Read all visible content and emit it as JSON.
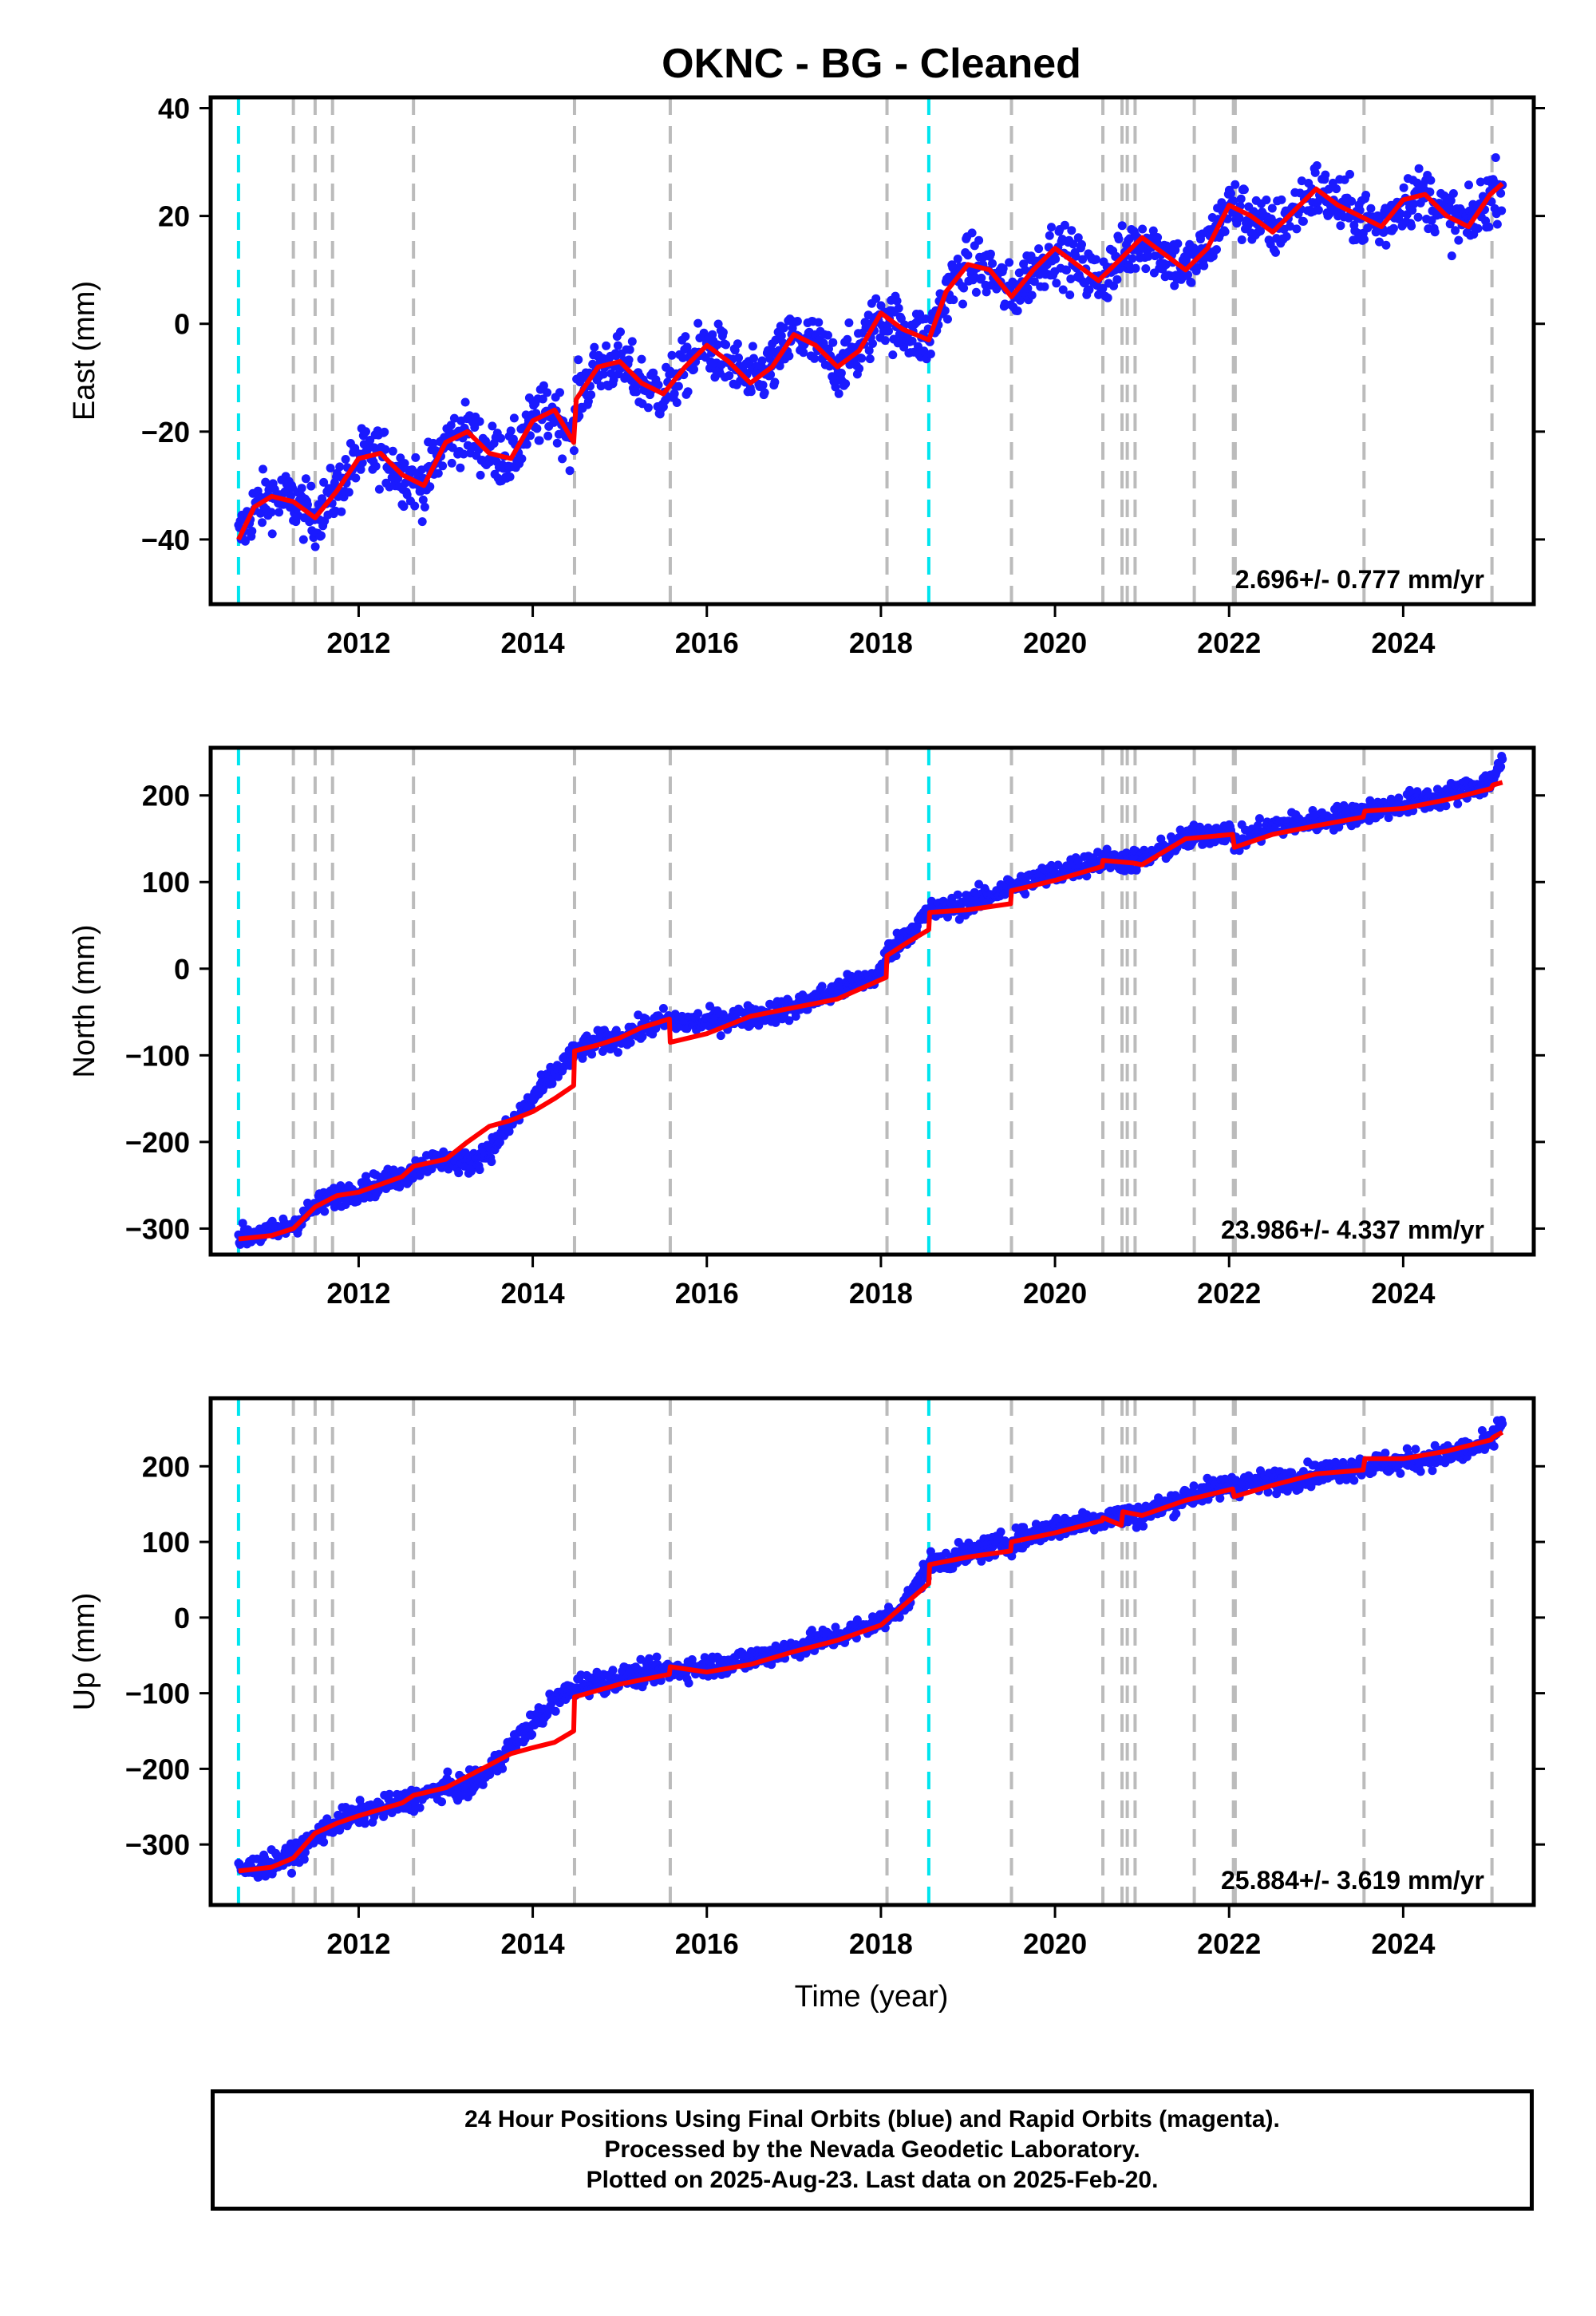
{
  "title": "OKNC  - BG - Cleaned",
  "xlabel": "Time (year)",
  "x_ticks": [
    2012,
    2014,
    2016,
    2018,
    2020,
    2022,
    2024
  ],
  "xlim": [
    2010.3,
    2025.5
  ],
  "cyan_lines": [
    2010.62,
    2018.55
  ],
  "gray_lines": [
    2011.25,
    2011.5,
    2011.7,
    2012.63,
    2014.48,
    2015.58,
    2018.07,
    2019.5,
    2020.55,
    2020.77,
    2020.83,
    2020.92,
    2021.6,
    2022.05,
    2022.07,
    2023.55,
    2025.02
  ],
  "colors": {
    "points": "#1a1aff",
    "model": "#ff0000",
    "cyan": "#00e5ee",
    "gray": "#bbbbbb"
  },
  "chart_data": [
    {
      "type": "scatter",
      "component": "East",
      "ylabel": "East (mm)",
      "ylim": [
        -52,
        42
      ],
      "y_ticks": [
        40,
        20,
        0,
        -20,
        -40
      ],
      "rate_label": "2.696+/- 0.777 mm/yr",
      "series": [
        {
          "name": "24 Hour Positions (Final Orbits)",
          "x": [
            2010.62,
            2010.8,
            2011.0,
            2011.25,
            2011.5,
            2011.75,
            2012.0,
            2012.25,
            2012.5,
            2012.75,
            2013.0,
            2013.25,
            2013.5,
            2013.75,
            2014.0,
            2014.25,
            2014.47,
            2014.5,
            2014.75,
            2015.0,
            2015.25,
            2015.5,
            2015.75,
            2016.0,
            2016.25,
            2016.5,
            2016.75,
            2017.0,
            2017.25,
            2017.5,
            2017.75,
            2018.0,
            2018.25,
            2018.55,
            2018.75,
            2019.0,
            2019.25,
            2019.5,
            2019.75,
            2020.0,
            2020.25,
            2020.5,
            2020.75,
            2021.0,
            2021.25,
            2021.5,
            2021.75,
            2022.0,
            2022.25,
            2022.5,
            2022.75,
            2023.0,
            2023.25,
            2023.5,
            2023.75,
            2024.0,
            2024.25,
            2024.5,
            2024.75,
            2025.0,
            2025.14
          ],
          "y": [
            -40,
            -34,
            -32,
            -33,
            -36,
            -31,
            -25,
            -24,
            -28,
            -30,
            -22,
            -20,
            -24,
            -25,
            -18,
            -16,
            -22,
            -14,
            -8,
            -7,
            -11,
            -13,
            -8,
            -4,
            -7,
            -11,
            -8,
            -2,
            -4,
            -8,
            -5,
            2,
            -1,
            -3,
            6,
            11,
            10,
            5,
            10,
            14,
            11,
            8,
            12,
            16,
            13,
            10,
            14,
            22,
            20,
            17,
            21,
            25,
            22,
            20,
            18,
            23,
            24,
            20,
            18,
            24,
            26
          ]
        },
        {
          "name": "Model",
          "x": [
            2010.62,
            2010.8,
            2011.0,
            2011.25,
            2011.5,
            2011.75,
            2012.0,
            2012.25,
            2012.5,
            2012.75,
            2013.0,
            2013.25,
            2013.5,
            2013.75,
            2014.0,
            2014.25,
            2014.47,
            2014.5,
            2014.75,
            2015.0,
            2015.25,
            2015.5,
            2015.75,
            2016.0,
            2016.25,
            2016.5,
            2016.75,
            2017.0,
            2017.25,
            2017.5,
            2017.75,
            2018.0,
            2018.25,
            2018.55,
            2018.75,
            2019.0,
            2019.25,
            2019.5,
            2019.75,
            2020.0,
            2020.25,
            2020.5,
            2020.75,
            2021.0,
            2021.25,
            2021.5,
            2021.75,
            2022.0,
            2022.25,
            2022.5,
            2022.75,
            2023.0,
            2023.25,
            2023.5,
            2023.75,
            2024.0,
            2024.25,
            2024.5,
            2024.75,
            2025.0,
            2025.14
          ],
          "y": [
            -40,
            -34,
            -32,
            -33,
            -36,
            -31,
            -25,
            -24,
            -28,
            -30,
            -22,
            -20,
            -24,
            -25,
            -18,
            -16,
            -22,
            -14,
            -8,
            -7,
            -11,
            -13,
            -8,
            -4,
            -7,
            -11,
            -8,
            -2,
            -4,
            -8,
            -5,
            2,
            -1,
            -3,
            6,
            11,
            10,
            5,
            10,
            14,
            11,
            8,
            12,
            16,
            13,
            10,
            14,
            22,
            20,
            17,
            21,
            25,
            22,
            20,
            18,
            23,
            24,
            20,
            18,
            24,
            26
          ]
        }
      ]
    },
    {
      "type": "scatter",
      "component": "North",
      "ylabel": "North (mm)",
      "ylim": [
        -330,
        255
      ],
      "y_ticks": [
        200,
        100,
        0,
        -100,
        -200,
        -300
      ],
      "rate_label": "23.986+/- 4.337 mm/yr",
      "series": [
        {
          "name": "24 Hour Positions (Final Orbits)",
          "x": [
            2010.62,
            2011.0,
            2011.25,
            2011.5,
            2011.75,
            2012.0,
            2012.5,
            2012.75,
            2013.0,
            2013.25,
            2013.5,
            2013.75,
            2014.0,
            2014.25,
            2014.47,
            2014.5,
            2014.75,
            2015.0,
            2015.25,
            2015.5,
            2016.0,
            2016.5,
            2017.0,
            2017.5,
            2018.0,
            2018.05,
            2018.3,
            2018.55,
            2019.0,
            2019.5,
            2020.0,
            2020.5,
            2020.75,
            2021.0,
            2021.5,
            2022.0,
            2022.05,
            2022.5,
            2023.0,
            2023.5,
            2024.0,
            2024.5,
            2025.0,
            2025.14
          ],
          "y": [
            -310,
            -305,
            -295,
            -275,
            -262,
            -255,
            -240,
            -225,
            -220,
            -225,
            -210,
            -180,
            -150,
            -120,
            -100,
            -95,
            -85,
            -80,
            -70,
            -60,
            -62,
            -55,
            -45,
            -25,
            -5,
            15,
            40,
            65,
            75,
            95,
            110,
            125,
            125,
            125,
            150,
            160,
            145,
            165,
            170,
            180,
            190,
            200,
            215,
            240
          ]
        },
        {
          "name": "Model",
          "x": [
            2010.62,
            2011.0,
            2011.25,
            2011.5,
            2011.75,
            2012.0,
            2012.5,
            2012.63,
            2013.0,
            2013.25,
            2013.5,
            2013.75,
            2014.0,
            2014.25,
            2014.47,
            2014.48,
            2014.75,
            2015.0,
            2015.25,
            2015.57,
            2015.58,
            2016.0,
            2016.5,
            2017.0,
            2017.5,
            2018.06,
            2018.07,
            2018.3,
            2018.55,
            2018.56,
            2019.0,
            2019.49,
            2019.5,
            2020.0,
            2020.54,
            2020.55,
            2020.9,
            2021.0,
            2021.5,
            2022.04,
            2022.06,
            2022.5,
            2023.0,
            2023.54,
            2023.56,
            2024.0,
            2024.5,
            2025.01,
            2025.03,
            2025.14
          ],
          "y": [
            -312,
            -308,
            -300,
            -275,
            -262,
            -258,
            -240,
            -228,
            -220,
            -200,
            -182,
            -175,
            -165,
            -150,
            -135,
            -95,
            -88,
            -80,
            -68,
            -58,
            -85,
            -75,
            -55,
            -45,
            -35,
            -10,
            15,
            30,
            45,
            65,
            68,
            75,
            90,
            102,
            118,
            125,
            122,
            120,
            150,
            155,
            140,
            155,
            165,
            175,
            182,
            185,
            195,
            208,
            212,
            215
          ]
        }
      ]
    },
    {
      "type": "scatter",
      "component": "Up",
      "ylabel": "Up (mm)",
      "ylim": [
        -380,
        290
      ],
      "y_ticks": [
        200,
        100,
        0,
        -100,
        -200,
        -300
      ],
      "rate_label": "25.884+/- 3.619 mm/yr",
      "series": [
        {
          "name": "24 Hour Positions (Final Orbits)",
          "x": [
            2010.62,
            2011.0,
            2011.25,
            2011.5,
            2011.75,
            2012.0,
            2012.5,
            2012.75,
            2013.0,
            2013.25,
            2013.5,
            2013.75,
            2014.0,
            2014.25,
            2014.47,
            2014.5,
            2015.0,
            2015.5,
            2016.0,
            2016.5,
            2017.0,
            2017.5,
            2018.0,
            2018.3,
            2018.55,
            2019.0,
            2019.5,
            2020.0,
            2020.5,
            2020.75,
            2021.0,
            2021.5,
            2022.0,
            2022.5,
            2023.0,
            2023.5,
            2024.0,
            2024.5,
            2025.0,
            2025.14
          ],
          "y": [
            -335,
            -325,
            -315,
            -290,
            -270,
            -260,
            -245,
            -235,
            -225,
            -225,
            -205,
            -170,
            -140,
            -110,
            -95,
            -90,
            -80,
            -70,
            -65,
            -55,
            -40,
            -25,
            -5,
            20,
            70,
            85,
            100,
            120,
            130,
            135,
            135,
            160,
            175,
            180,
            190,
            200,
            205,
            215,
            230,
            260
          ]
        },
        {
          "name": "Model",
          "x": [
            2010.62,
            2011.0,
            2011.25,
            2011.5,
            2011.75,
            2012.0,
            2012.5,
            2012.63,
            2013.0,
            2013.25,
            2013.5,
            2013.75,
            2014.0,
            2014.25,
            2014.47,
            2014.48,
            2015.0,
            2015.57,
            2015.58,
            2016.0,
            2016.5,
            2017.0,
            2017.5,
            2018.0,
            2018.55,
            2018.56,
            2019.0,
            2019.49,
            2019.5,
            2020.0,
            2020.54,
            2020.55,
            2020.76,
            2020.78,
            2021.0,
            2021.5,
            2022.04,
            2022.06,
            2022.5,
            2023.0,
            2023.54,
            2023.56,
            2024.0,
            2024.5,
            2025.01,
            2025.03,
            2025.14
          ],
          "y": [
            -335,
            -330,
            -318,
            -285,
            -272,
            -262,
            -245,
            -235,
            -225,
            -210,
            -195,
            -180,
            -172,
            -165,
            -150,
            -105,
            -88,
            -75,
            -65,
            -72,
            -62,
            -45,
            -30,
            -10,
            45,
            70,
            80,
            88,
            100,
            112,
            128,
            132,
            122,
            140,
            135,
            155,
            170,
            160,
            175,
            190,
            195,
            210,
            210,
            220,
            235,
            238,
            245
          ]
        }
      ]
    }
  ],
  "footer": {
    "line1": "24 Hour Positions Using Final Orbits (blue) and Rapid Orbits (magenta).",
    "line2": "Processed by the Nevada Geodetic Laboratory.",
    "line3": "Plotted on 2025-Aug-23. Last data on 2025-Feb-20."
  }
}
